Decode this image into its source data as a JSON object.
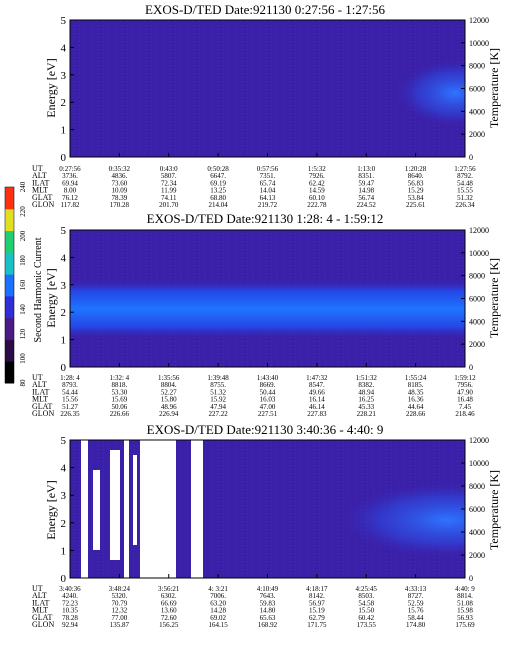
{
  "chart_data": [
    {
      "type": "heatmap",
      "title": "EXOS-D/TED   Date:921130  0:27:56 - 1:27:56",
      "ylabel": "Energy [eV]",
      "y2label": "Temperature [K]",
      "ylim": [
        0,
        5
      ],
      "yticks": [
        0,
        1,
        2,
        3,
        4,
        5
      ],
      "y2lim": [
        0,
        12000
      ],
      "y2ticks": [
        0,
        2000,
        4000,
        6000,
        8000,
        10000,
        12000
      ],
      "orbit_table": {
        "row_labels": [
          "UT",
          "ALT",
          "ILAT",
          "MLT",
          "GLAT",
          "GLON"
        ],
        "columns": [
          [
            "0:27:56",
            "3736.",
            "69.94",
            "8.00",
            "76.12",
            "117.82"
          ],
          [
            "0:35:32",
            "4836.",
            "73.60",
            "10.09",
            "78.39",
            "170.28"
          ],
          [
            "0:43:0",
            "5807.",
            "72.34",
            "11.99",
            "74.11",
            "201.70"
          ],
          [
            "0:50:28",
            "6647.",
            "69.19",
            "13.25",
            "68.80",
            "214.04"
          ],
          [
            "0:57:56",
            "7351.",
            "65.74",
            "14.04",
            "64.13",
            "219.72"
          ],
          [
            "1:5:32",
            "7926.",
            "62.42",
            "14.59",
            "60.10",
            "222.78"
          ],
          [
            "1:13:0",
            "8351.",
            "59.47",
            "14.98",
            "56.74",
            "224.52"
          ],
          [
            "1:20:28",
            "8640.",
            "56.83",
            "15.29",
            "53.84",
            "225.61"
          ],
          [
            "1:27:56",
            "8792.",
            "54.48",
            "15.55",
            "51.32",
            "226.34"
          ]
        ]
      }
    },
    {
      "type": "heatmap",
      "title": "EXOS-D/TED   Date:921130  1:28: 4 - 1:59:12",
      "ylabel": "Energy [eV]",
      "y2label": "Temperature [K]",
      "ylim": [
        0,
        5
      ],
      "yticks": [
        0,
        1,
        2,
        3,
        4,
        5
      ],
      "y2lim": [
        0,
        12000
      ],
      "y2ticks": [
        0,
        2000,
        4000,
        6000,
        8000,
        10000,
        12000
      ],
      "orbit_table": {
        "row_labels": [
          "UT",
          "ALT",
          "ILAT",
          "MLT",
          "GLAT",
          "GLON"
        ],
        "columns": [
          [
            "1:28: 4",
            "8793.",
            "54.44",
            "15.56",
            "51.27",
            "226.35"
          ],
          [
            "1:32: 4",
            "8818.",
            "53.30",
            "15.69",
            "50.06",
            "226.66"
          ],
          [
            "1:35:56",
            "8804.",
            "52.27",
            "15.80",
            "48.96",
            "226.94"
          ],
          [
            "1:39:48",
            "8755.",
            "51.32",
            "15.92",
            "47.94",
            "227.22"
          ],
          [
            "1:43:40",
            "8669.",
            "50.44",
            "16.03",
            "47.00",
            "227.51"
          ],
          [
            "1:47:32",
            "8547.",
            "49.66",
            "16.14",
            "46.14",
            "227.83"
          ],
          [
            "1:51:32",
            "8382.",
            "48.94",
            "16.25",
            "45.33",
            "228.21"
          ],
          [
            "1:55:24",
            "8185.",
            "48.35",
            "16.36",
            "44.64",
            "228.66"
          ],
          [
            "1:59:12",
            "7956.",
            "47.90",
            "16.48",
            "7.45",
            "218.46"
          ]
        ]
      }
    },
    {
      "type": "heatmap",
      "title": "EXOS-D/TED   Date:921130  3:40:36 - 4:40: 9",
      "ylabel": "Energy [eV]",
      "y2label": "Temperature [K]",
      "ylim": [
        0,
        5
      ],
      "yticks": [
        0,
        1,
        2,
        3,
        4,
        5
      ],
      "y2lim": [
        0,
        12000
      ],
      "y2ticks": [
        0,
        2000,
        4000,
        6000,
        8000,
        10000,
        12000
      ],
      "orbit_table": {
        "row_labels": [
          "UT",
          "ALT",
          "ILAT",
          "MLT",
          "GLAT",
          "GLON"
        ],
        "columns": [
          [
            "3:40:36",
            "4240.",
            "72.23",
            "10.35",
            "78.28",
            "92.94"
          ],
          [
            "3:48:24",
            "5320.",
            "70.79",
            "12.32",
            "77.00",
            "135.87"
          ],
          [
            "3:56:21",
            "6302.",
            "66.69",
            "13.60",
            "72.60",
            "156.25"
          ],
          [
            "4: 3:21",
            "7006.",
            "63.20",
            "14.28",
            "69.02",
            "164.15"
          ],
          [
            "4:10:49",
            "7643.",
            "59.83",
            "14.80",
            "65.63",
            "168.92"
          ],
          [
            "4:18:17",
            "8142.",
            "56.97",
            "15.19",
            "62.79",
            "171.75"
          ],
          [
            "4:25:45",
            "8503.",
            "54.58",
            "15.50",
            "60.42",
            "173.55"
          ],
          [
            "4:33:13",
            "8727.",
            "52.59",
            "15.76",
            "58.44",
            "174.80"
          ],
          [
            "4:40: 9",
            "8814.",
            "51.08",
            "15.98",
            "56.93",
            "175.69"
          ]
        ]
      }
    }
  ],
  "colorbar": {
    "label": "Second Harmonic Current",
    "ticks": [
      80,
      100,
      120,
      140,
      160,
      180,
      200,
      220,
      240
    ],
    "colors": [
      "#000000",
      "#2a0d47",
      "#4b1a85",
      "#2f2fd8",
      "#1a70ff",
      "#18c0c8",
      "#20d070",
      "#e0e020",
      "#ff3010"
    ]
  }
}
